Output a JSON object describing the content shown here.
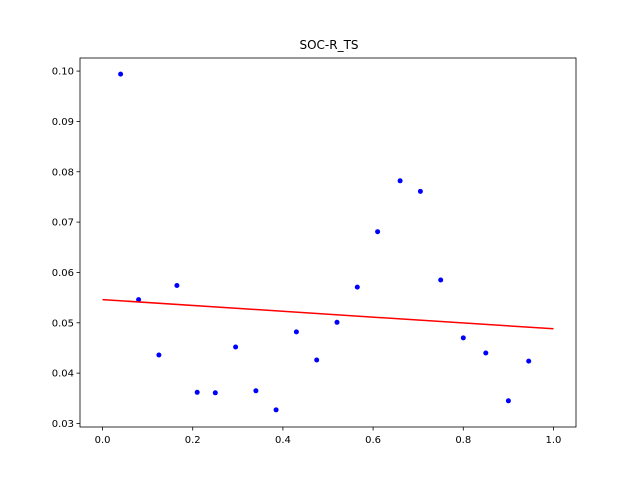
{
  "chart_data": {
    "type": "scatter",
    "title": "SOC-R_TS",
    "xlabel": "",
    "ylabel": "",
    "xlim": [
      -0.05,
      1.05
    ],
    "ylim": [
      0.0293,
      0.1026
    ],
    "x_ticks": [
      0.0,
      0.2,
      0.4,
      0.6,
      0.8,
      1.0
    ],
    "x_tick_labels": [
      "0.0",
      "0.2",
      "0.4",
      "0.6",
      "0.8",
      "1.0"
    ],
    "y_ticks": [
      0.03,
      0.04,
      0.05,
      0.06,
      0.07,
      0.08,
      0.09,
      0.1
    ],
    "y_tick_labels": [
      "0.03",
      "0.04",
      "0.05",
      "0.06",
      "0.07",
      "0.08",
      "0.09",
      "0.10"
    ],
    "grid": false,
    "series": [
      {
        "type": "scatter",
        "color": "#0000ff",
        "points": [
          {
            "x": 0.04,
            "y": 0.0994
          },
          {
            "x": 0.08,
            "y": 0.0546
          },
          {
            "x": 0.125,
            "y": 0.0436
          },
          {
            "x": 0.165,
            "y": 0.0574
          },
          {
            "x": 0.21,
            "y": 0.0362
          },
          {
            "x": 0.25,
            "y": 0.0361
          },
          {
            "x": 0.295,
            "y": 0.0452
          },
          {
            "x": 0.34,
            "y": 0.0365
          },
          {
            "x": 0.385,
            "y": 0.0327
          },
          {
            "x": 0.43,
            "y": 0.0482
          },
          {
            "x": 0.475,
            "y": 0.0426
          },
          {
            "x": 0.52,
            "y": 0.0501
          },
          {
            "x": 0.565,
            "y": 0.0571
          },
          {
            "x": 0.61,
            "y": 0.0681
          },
          {
            "x": 0.66,
            "y": 0.0782
          },
          {
            "x": 0.705,
            "y": 0.0761
          },
          {
            "x": 0.75,
            "y": 0.0585
          },
          {
            "x": 0.8,
            "y": 0.047
          },
          {
            "x": 0.85,
            "y": 0.044
          },
          {
            "x": 0.9,
            "y": 0.0345
          },
          {
            "x": 0.945,
            "y": 0.0424
          }
        ]
      },
      {
        "type": "line",
        "color": "#ff0000",
        "points": [
          {
            "x": 0.0,
            "y": 0.0546
          },
          {
            "x": 1.0,
            "y": 0.0488
          }
        ]
      }
    ]
  }
}
